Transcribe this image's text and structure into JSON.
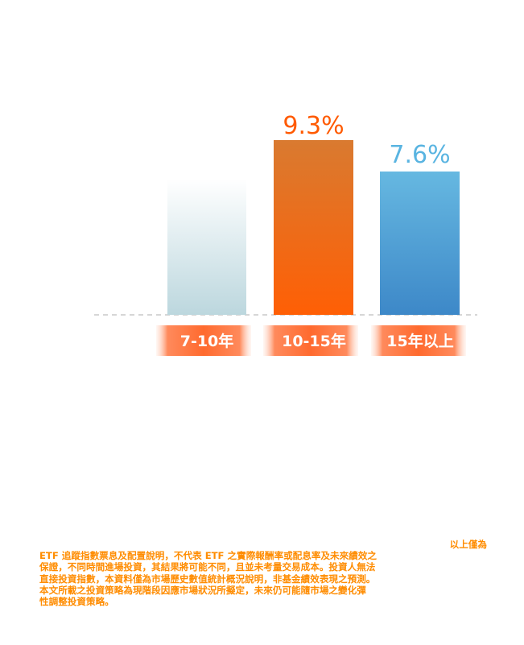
{
  "chart_data": {
    "type": "bar",
    "categories": [
      "7-10年",
      "10-15年",
      "15年以上"
    ],
    "values": [
      null,
      9.3,
      7.6
    ],
    "value_labels": [
      "",
      "9.3%",
      "7.6%"
    ],
    "colors": {
      "bar_faded_top": "#ffffff",
      "bar_faded_bottom": "#bcd7de",
      "bar_orange_top": "#d97a30",
      "bar_orange_bottom": "#ff5f05",
      "bar_blue_top": "#66b8e1",
      "bar_blue_bottom": "#3d88c8",
      "label_orange": "#ff5a00",
      "label_blue": "#59b4e1",
      "tag_core": "#ff6a2e",
      "tag_edge": "#ffd9c6",
      "baseline": "#c8c8c8"
    },
    "baseline_style": "dashed",
    "grid": false,
    "legend": "none"
  },
  "disclaimer": {
    "heading": "以上僅為",
    "body": "ETF 追蹤指數票息及配置說明，不代表 ETF 之實際報酬率或配息率及未來績效之\n保證，不同時間進場投資，其結果將可能不同，且並未考量交易成本。投資人無法\n直接投資指數，本資料僅為市場歷史數值統計概況說明，非基金績效表現之預測。\n本文所載之投資策略為現階段因應市場狀況所擬定，未來仍可能隨市場之變化彈\n性調整投資策略。"
  }
}
